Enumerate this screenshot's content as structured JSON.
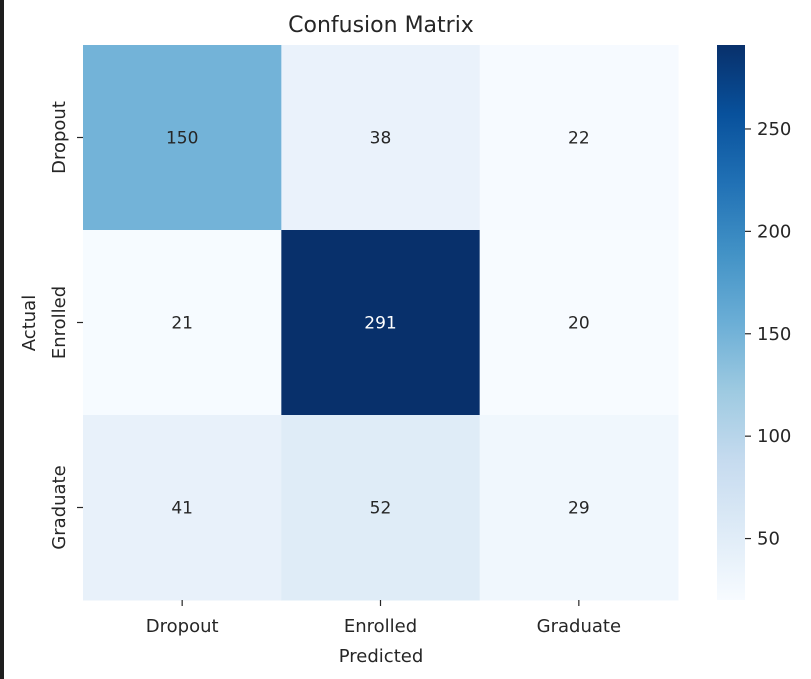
{
  "chart_data": {
    "type": "heatmap",
    "title": "Confusion Matrix",
    "xlabel": "Predicted",
    "ylabel": "Actual",
    "x_categories": [
      "Dropout",
      "Enrolled",
      "Graduate"
    ],
    "y_categories": [
      "Dropout",
      "Enrolled",
      "Graduate"
    ],
    "matrix": [
      [
        150,
        38,
        22
      ],
      [
        21,
        291,
        20
      ],
      [
        41,
        52,
        29
      ]
    ],
    "colormap": "Blues",
    "value_range": [
      20,
      291
    ],
    "colorbar_ticks": [
      50,
      100,
      150,
      200,
      250
    ],
    "colorbar_tick_labels": [
      "50",
      "100",
      "150",
      "200",
      "250"
    ],
    "colors": {
      "low": "#f7fbff",
      "high": "#08306b",
      "text_dark": "#262626",
      "text_light": "#ffffff"
    }
  }
}
